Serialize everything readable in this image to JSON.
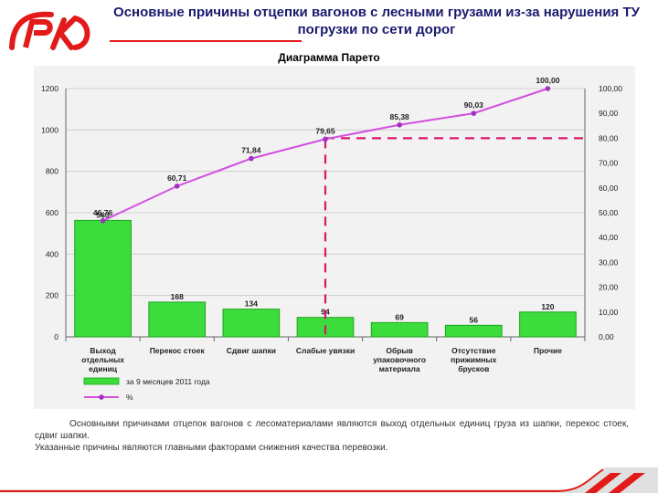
{
  "header": {
    "logo_text": "РЖД",
    "title": "Основные причины отцепки вагонов с лесными грузами из-за нарушения ТУ погрузки по сети дорог"
  },
  "chart_subtitle": "Диаграмма Парето",
  "colors": {
    "brand": "#e21a1a",
    "bar": "#3ddc3d",
    "bar_edge": "#1aa51a",
    "line": "#d24fe0",
    "cutoff": "#d9186a",
    "title": "#1a1a6e"
  },
  "chart_data": {
    "type": "bar",
    "categories": [
      "Выход отдельных единиц",
      "Перекос стоек",
      "Сдвиг шапки",
      "Слабые увязки",
      "Обрыв упаковочного материала",
      "Отсутствие прижимных брусков",
      "Прочие"
    ],
    "category_lines": [
      [
        "Выход",
        "отдельных",
        "единиц"
      ],
      [
        "Перекос стоек"
      ],
      [
        "Сдвиг шапки"
      ],
      [
        "Слабые увязки"
      ],
      [
        "Обрыв",
        "упаковочного",
        "материала"
      ],
      [
        "Отсутствие",
        "прижимных",
        "брусков"
      ],
      [
        "Прочие"
      ]
    ],
    "series": [
      {
        "name": "за 9 месяцев 2011 года",
        "type": "bar",
        "values": [
          563,
          168,
          134,
          94,
          69,
          56,
          120
        ],
        "labels": [
          "563",
          "168",
          "134",
          "94",
          "69",
          "56",
          "120"
        ]
      },
      {
        "name": "%",
        "type": "line",
        "axis": "right",
        "values": [
          46.76,
          60.71,
          71.84,
          79.65,
          85.38,
          90.03,
          100.0
        ],
        "labels": [
          "46,76",
          "60,71",
          "71,84",
          "79,65",
          "85,38",
          "90,03",
          "100,00"
        ]
      }
    ],
    "y_left": {
      "ylim": [
        0,
        1200
      ],
      "ticks": [
        0,
        200,
        400,
        600,
        800,
        1000,
        1200
      ],
      "tick_labels": [
        "0",
        "200",
        "400",
        "600",
        "800",
        "1000",
        "1200"
      ]
    },
    "y_right": {
      "ylim": [
        0,
        100
      ],
      "ticks": [
        0,
        10,
        20,
        30,
        40,
        50,
        60,
        70,
        80,
        90,
        100
      ],
      "tick_labels": [
        "0,00",
        "10,00",
        "20,00",
        "30,00",
        "40,00",
        "50,00",
        "60,00",
        "70,00",
        "80,00",
        "90,00",
        "100,00"
      ]
    },
    "cutoff": {
      "percent": 80,
      "category_index": 3
    },
    "grid": true,
    "legend": "bottom-left"
  },
  "note": {
    "p1": "Основными причинами отцепок вагонов с лесоматериалами являются выход отдельных единиц груза из шапки, перекос стоек, сдвиг шапки.",
    "p2": "Указанные причины являются главными факторами снижения качества перевозки."
  }
}
